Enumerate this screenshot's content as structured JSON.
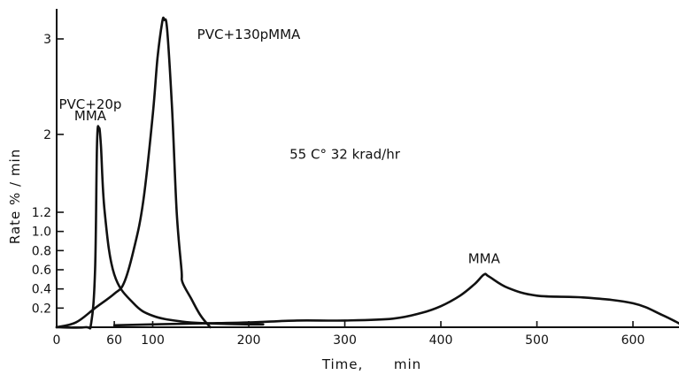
{
  "chart_data": {
    "type": "line",
    "xlabel": "Time,      min",
    "ylabel": "Rate % / min",
    "xlim": [
      0,
      650
    ],
    "ylim": [
      0,
      3.1
    ],
    "y_scale": "piecewise",
    "x_ticks": [
      0,
      60,
      100,
      200,
      300,
      400,
      500,
      600
    ],
    "y_ticks": [
      {
        "v": 0.2,
        "label": "0.2"
      },
      {
        "v": 0.4,
        "label": "0.4"
      },
      {
        "v": 0.6,
        "label": "0.6"
      },
      {
        "v": 0.8,
        "label": "0.8"
      },
      {
        "v": 1.0,
        "label": "1.0"
      },
      {
        "v": 1.2,
        "label": "1.2"
      },
      {
        "v": 2.0,
        "label": "2"
      },
      {
        "v": 3.0,
        "label": "3"
      }
    ],
    "grid": false,
    "annotations": [
      {
        "text": "PVC+130pMMA",
        "x": 200,
        "y": 3.0
      },
      {
        "text": "PVC+20p",
        "x": 35,
        "y": 2.27
      },
      {
        "text": "MMA",
        "x": 35,
        "y": 2.15
      },
      {
        "text": "55 C° 32 krad/hr",
        "x": 300,
        "y": 1.75
      },
      {
        "text": "MMA",
        "x": 445,
        "y": 0.67
      }
    ],
    "series": [
      {
        "x": [
          0,
          30,
          36,
          40,
          42,
          44,
          46,
          50,
          60,
          80,
          100,
          130,
          160,
          200,
          215
        ],
        "y": [
          0,
          0,
          0.05,
          0.6,
          1.9,
          2.07,
          1.9,
          1.2,
          0.55,
          0.25,
          0.12,
          0.06,
          0.04,
          0.03,
          0.03
        ]
      },
      {
        "x": [
          0,
          20,
          40,
          60,
          70,
          80,
          90,
          100,
          105,
          110,
          112,
          115,
          120,
          125,
          130,
          131,
          140,
          150,
          160
        ],
        "y": [
          0,
          0.05,
          0.2,
          0.35,
          0.46,
          0.8,
          1.3,
          2.2,
          2.8,
          3.18,
          3.2,
          3.1,
          2.3,
          1.2,
          0.6,
          0.47,
          0.3,
          0.12,
          0.0
        ]
      },
      {
        "x": [
          60,
          100,
          150,
          200,
          250,
          300,
          350,
          380,
          400,
          420,
          435,
          445,
          450,
          470,
          500,
          550,
          600,
          630,
          650
        ],
        "y": [
          0.02,
          0.03,
          0.04,
          0.05,
          0.07,
          0.07,
          0.09,
          0.15,
          0.22,
          0.33,
          0.45,
          0.55,
          0.53,
          0.41,
          0.33,
          0.31,
          0.25,
          0.13,
          0.03
        ]
      }
    ]
  }
}
